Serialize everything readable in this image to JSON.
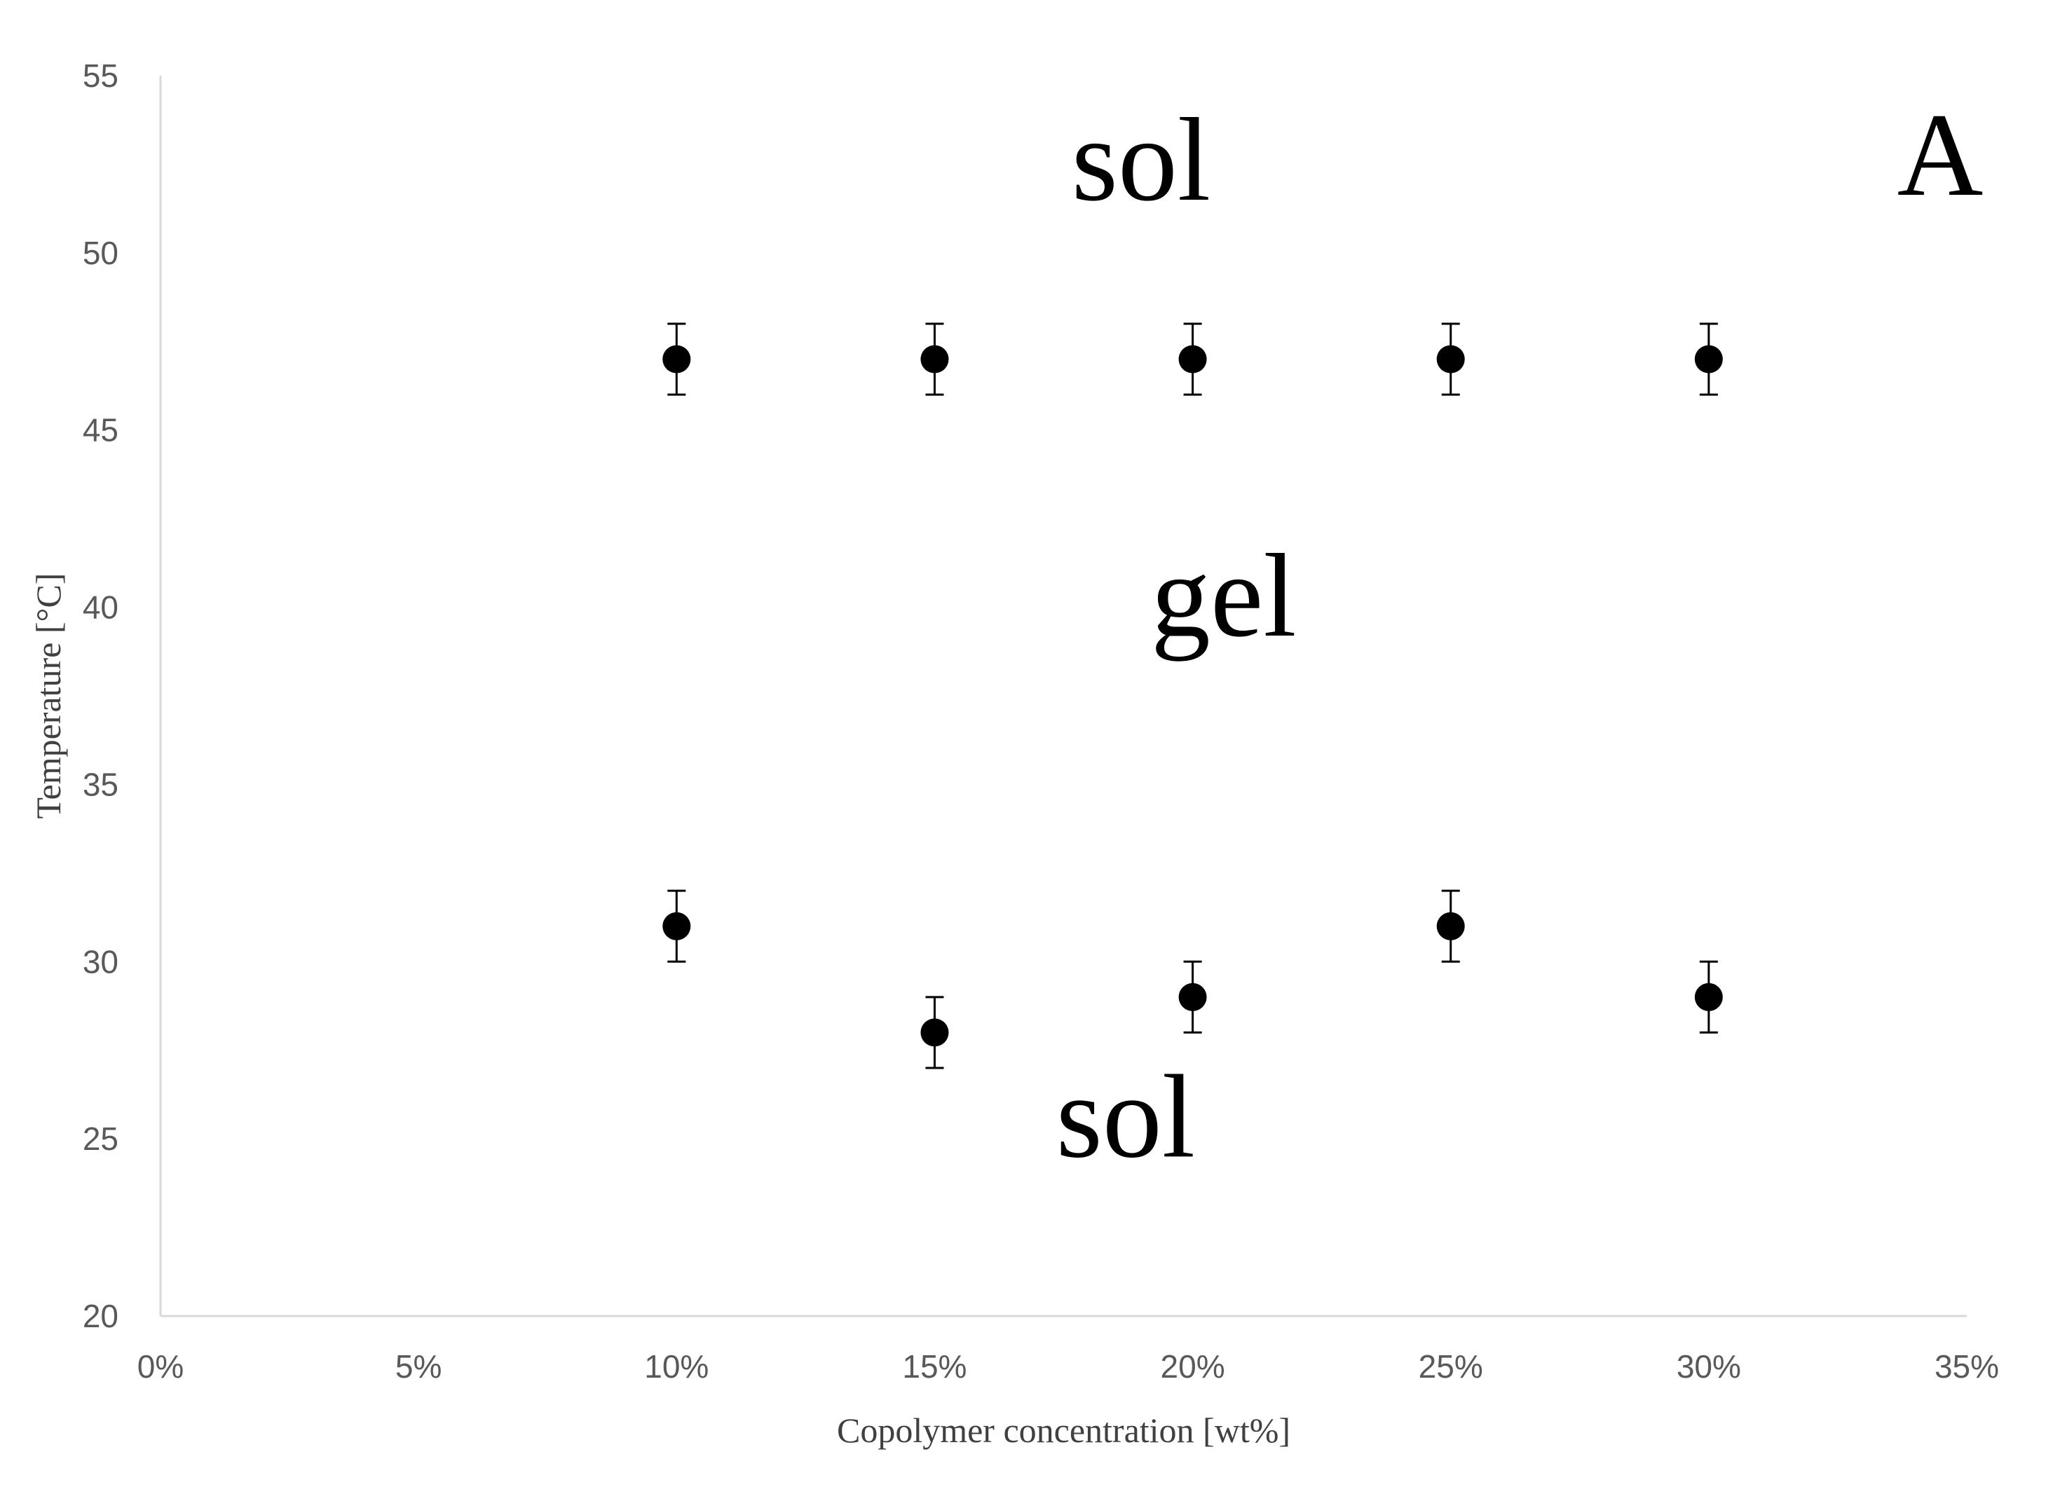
{
  "chart_data": {
    "type": "scatter",
    "title": "",
    "xlabel": "Copolymer  concentration  [wt%]",
    "ylabel": "Temperature  [°C]",
    "xlim": [
      0,
      35
    ],
    "ylim": [
      20,
      55
    ],
    "x_ticks": [
      0,
      5,
      10,
      15,
      20,
      25,
      30,
      35
    ],
    "x_tick_labels": [
      "0%",
      "5%",
      "10%",
      "15%",
      "20%",
      "25%",
      "30%",
      "35%"
    ],
    "y_ticks": [
      20,
      25,
      30,
      35,
      40,
      45,
      50,
      55
    ],
    "y_tick_labels": [
      "20",
      "25",
      "30",
      "35",
      "40",
      "45",
      "50",
      "55"
    ],
    "grid": false,
    "legend": "none",
    "marker_color": "#000000",
    "series": [
      {
        "x": [
          10,
          15,
          20,
          25,
          30
        ],
        "y": [
          47,
          47,
          47,
          47,
          47
        ],
        "error": [
          1,
          1,
          1,
          1,
          1
        ]
      },
      {
        "x": [
          10,
          15,
          20,
          25,
          30
        ],
        "y": [
          31,
          28,
          29,
          31,
          29
        ],
        "error": [
          1,
          1,
          1,
          1,
          1
        ]
      }
    ],
    "annotations": [
      {
        "text": "sol",
        "x": 19,
        "y": 51.5
      },
      {
        "text": "gel",
        "x": 20.6,
        "y": 39.2
      },
      {
        "text": "sol",
        "x": 18.7,
        "y": 24.5
      }
    ],
    "panel_label": "A"
  }
}
